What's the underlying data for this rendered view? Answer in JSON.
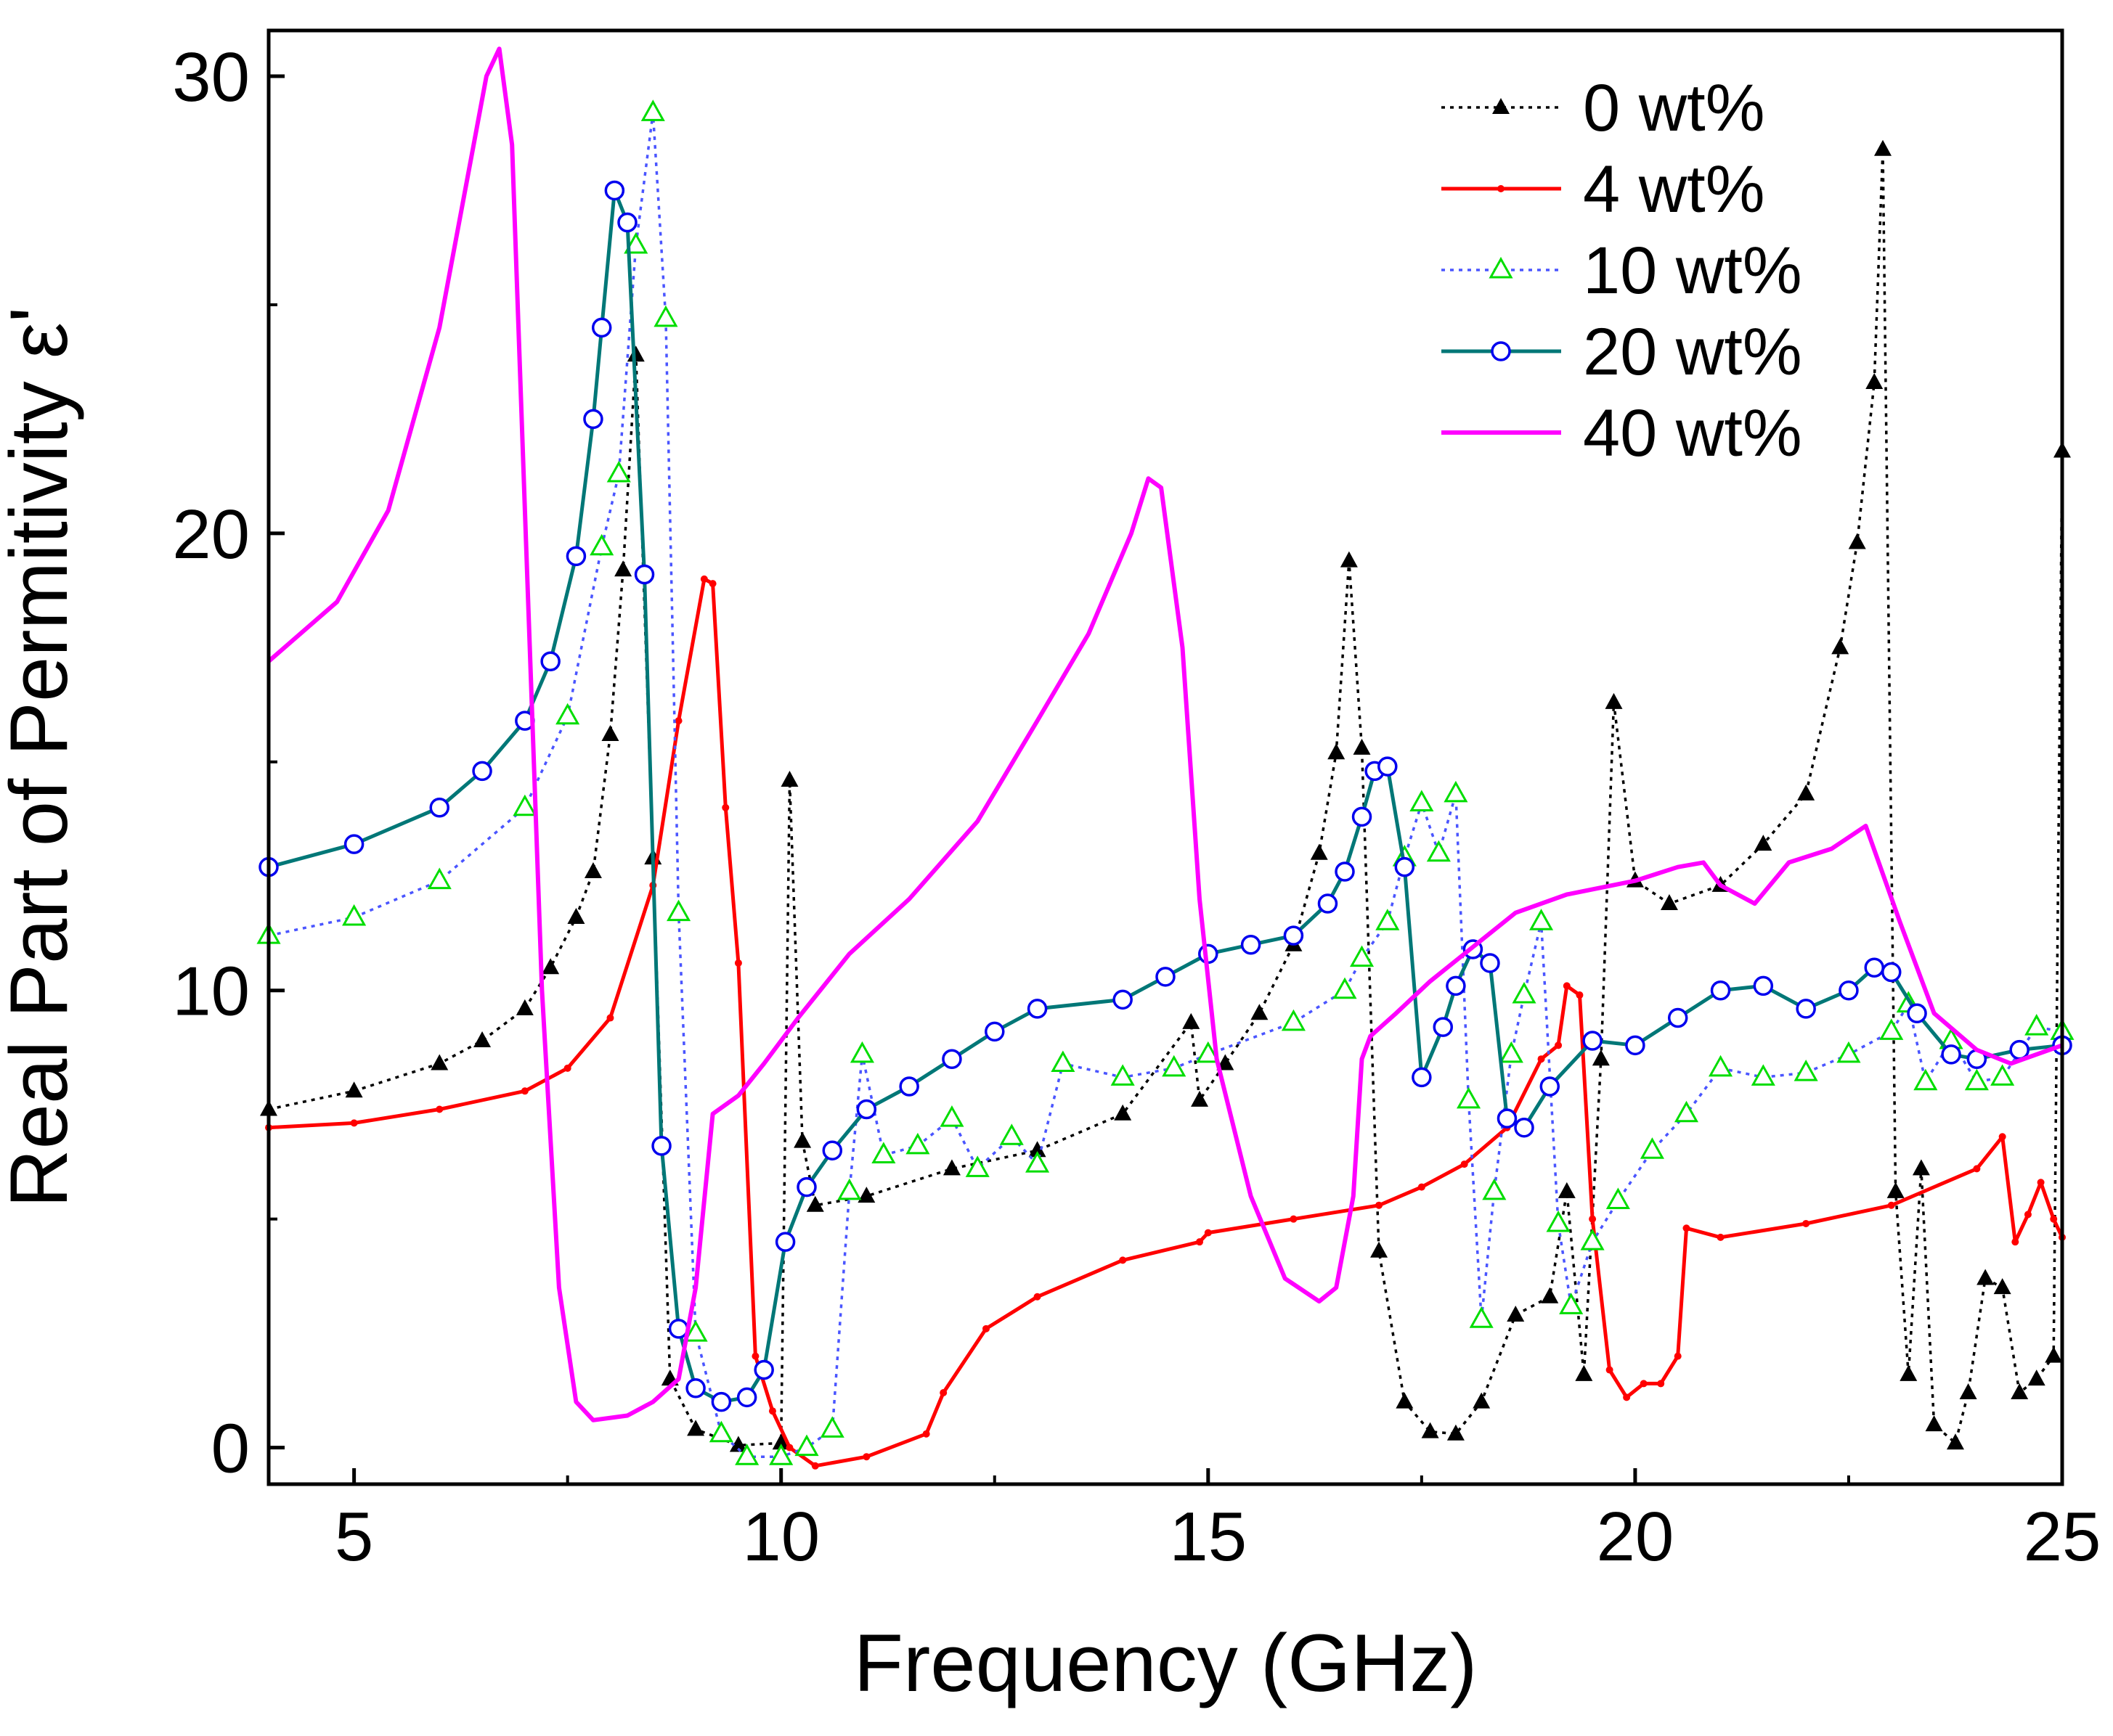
{
  "chart_data": {
    "type": "line",
    "title": "",
    "xlabel": "Frequency (GHz)",
    "ylabel": "Real Part of Permitivity ε'",
    "xlim": [
      4,
      25
    ],
    "ylim": [
      -0.8,
      31
    ],
    "xticks": [
      5,
      10,
      15,
      20,
      25
    ],
    "yticks": [
      0,
      10,
      20,
      30
    ],
    "legend_position": "top-right",
    "series": [
      {
        "name": "0 wt%",
        "color": "#000000",
        "dash": "dotted",
        "marker": "triangle-filled",
        "x": [
          4,
          5,
          6,
          6.5,
          7,
          7.3,
          7.6,
          7.8,
          8,
          8.15,
          8.3,
          8.5,
          8.7,
          9,
          9.5,
          10,
          10.1,
          10.25,
          10.4,
          11,
          12,
          13,
          14,
          14.8,
          14.9,
          15.2,
          15.6,
          16,
          16.3,
          16.5,
          16.65,
          16.8,
          17,
          17.3,
          17.6,
          17.9,
          18.2,
          18.6,
          19,
          19.2,
          19.4,
          19.6,
          19.75,
          20,
          20.4,
          21,
          21.5,
          22,
          22.4,
          22.6,
          22.8,
          22.9,
          23.05,
          23.2,
          23.35,
          23.5,
          23.75,
          23.9,
          24.1,
          24.3,
          24.5,
          24.7,
          24.9,
          25
        ],
        "y": [
          7.4,
          7.8,
          8.4,
          8.9,
          9.6,
          10.5,
          11.6,
          12.6,
          15.6,
          19.2,
          23.9,
          12.9,
          1.5,
          0.4,
          0.05,
          0.1,
          14.6,
          6.7,
          5.3,
          5.5,
          6.1,
          6.5,
          7.3,
          9.3,
          7.6,
          8.4,
          9.5,
          11.0,
          13.0,
          15.2,
          19.4,
          15.3,
          4.3,
          1.0,
          0.35,
          0.3,
          1.0,
          2.9,
          3.3,
          5.6,
          1.6,
          8.5,
          16.3,
          12.4,
          11.9,
          12.3,
          13.2,
          14.3,
          17.5,
          19.8,
          23.3,
          28.4,
          5.6,
          1.6,
          6.1,
          0.5,
          0.1,
          1.2,
          3.7,
          3.5,
          1.2,
          1.5,
          2.0,
          21.8
        ]
      },
      {
        "name": "4 wt%",
        "color": "#ff0000",
        "dash": "solid",
        "marker": "dot",
        "x": [
          4,
          5,
          6,
          7,
          7.5,
          8,
          8.5,
          8.8,
          9.1,
          9.2,
          9.35,
          9.5,
          9.7,
          9.9,
          10.1,
          10.4,
          11,
          11.7,
          11.9,
          12.4,
          13,
          14,
          14.9,
          15,
          16,
          17,
          17.5,
          18,
          18.5,
          18.9,
          19.1,
          19.2,
          19.35,
          19.5,
          19.7,
          19.9,
          20.1,
          20.3,
          20.5,
          20.6,
          21,
          22,
          23,
          24,
          24.3,
          24.45,
          24.6,
          24.75,
          24.9,
          25
        ],
        "y": [
          7.0,
          7.1,
          7.4,
          7.8,
          8.3,
          9.4,
          12.3,
          15.9,
          19.0,
          18.9,
          14.0,
          10.6,
          2.0,
          0.8,
          0.0,
          -0.4,
          -0.2,
          0.3,
          1.2,
          2.6,
          3.3,
          4.1,
          4.5,
          4.7,
          5.0,
          5.3,
          5.7,
          6.2,
          7.0,
          8.5,
          8.8,
          10.1,
          9.9,
          5.0,
          1.7,
          1.1,
          1.4,
          1.4,
          2.0,
          4.8,
          4.6,
          4.9,
          5.3,
          6.1,
          6.8,
          4.5,
          5.1,
          5.8,
          5.0,
          4.6
        ]
      },
      {
        "name": "10 wt%",
        "color": "#00dd00",
        "line_color": "#4a55ff",
        "dash": "dotted",
        "marker": "triangle-open",
        "x": [
          4,
          5,
          6,
          7,
          7.5,
          7.9,
          8.1,
          8.3,
          8.5,
          8.65,
          8.8,
          9,
          9.3,
          9.6,
          10,
          10.3,
          10.6,
          10.8,
          10.95,
          11.2,
          11.6,
          12,
          12.3,
          12.7,
          13,
          13.3,
          14,
          14.6,
          15,
          16,
          16.6,
          16.8,
          17.1,
          17.3,
          17.5,
          17.7,
          17.9,
          18.05,
          18.2,
          18.35,
          18.55,
          18.7,
          18.9,
          19.1,
          19.25,
          19.5,
          19.8,
          20.2,
          20.6,
          21,
          21.5,
          22,
          22.5,
          23,
          23.2,
          23.4,
          23.7,
          24,
          24.3,
          24.7,
          25
        ],
        "y": [
          11.2,
          11.6,
          12.4,
          14.0,
          16.0,
          19.7,
          21.3,
          26.3,
          29.2,
          24.7,
          11.7,
          2.5,
          0.3,
          -0.2,
          -0.2,
          0.0,
          0.4,
          5.6,
          8.6,
          6.4,
          6.6,
          7.2,
          6.1,
          6.8,
          6.2,
          8.4,
          8.1,
          8.3,
          8.6,
          9.3,
          10.0,
          10.7,
          11.5,
          12.9,
          14.1,
          13.0,
          14.3,
          7.6,
          2.8,
          5.6,
          8.6,
          9.9,
          11.5,
          4.9,
          3.1,
          4.5,
          5.4,
          6.5,
          7.3,
          8.3,
          8.1,
          8.2,
          8.6,
          9.1,
          9.7,
          8.0,
          8.9,
          8.0,
          8.1,
          9.2,
          9.1
        ]
      },
      {
        "name": "20 wt%",
        "color": "#0000ee",
        "line_color": "#007777",
        "dash": "solid",
        "marker": "circle-open",
        "x": [
          4,
          5,
          6,
          6.5,
          7,
          7.3,
          7.6,
          7.8,
          7.9,
          8.05,
          8.2,
          8.4,
          8.6,
          8.8,
          9,
          9.3,
          9.6,
          9.8,
          10.05,
          10.3,
          10.6,
          11,
          11.5,
          12,
          12.5,
          13,
          14,
          14.5,
          15,
          15.5,
          16,
          16.4,
          16.6,
          16.8,
          16.95,
          17.1,
          17.3,
          17.5,
          17.75,
          17.9,
          18.1,
          18.3,
          18.5,
          18.7,
          19,
          19.5,
          20,
          20.5,
          21,
          21.5,
          22,
          22.5,
          22.8,
          23,
          23.3,
          23.7,
          24,
          24.5,
          25
        ],
        "y": [
          12.7,
          13.2,
          14.0,
          14.8,
          15.9,
          17.2,
          19.5,
          22.5,
          24.5,
          27.5,
          26.8,
          19.1,
          6.6,
          2.6,
          1.3,
          1.0,
          1.1,
          1.7,
          4.5,
          5.7,
          6.5,
          7.4,
          7.9,
          8.5,
          9.1,
          9.6,
          9.8,
          10.3,
          10.8,
          11.0,
          11.2,
          11.9,
          12.6,
          13.8,
          14.8,
          14.9,
          12.7,
          8.1,
          9.2,
          10.1,
          10.9,
          10.6,
          7.2,
          7.0,
          7.9,
          8.9,
          8.8,
          9.4,
          10.0,
          10.1,
          9.6,
          10.0,
          10.5,
          10.4,
          9.5,
          8.6,
          8.5,
          8.7,
          8.8
        ]
      },
      {
        "name": "40 wt%",
        "color": "#ff00ff",
        "dash": "solid",
        "marker": "none",
        "x": [
          4,
          4.8,
          5.4,
          6,
          6.4,
          6.55,
          6.7,
          6.85,
          7,
          7.2,
          7.4,
          7.6,
          7.8,
          8.2,
          8.5,
          8.8,
          9,
          9.2,
          9.5,
          9.8,
          10.2,
          10.8,
          11.5,
          12.3,
          13,
          13.6,
          14.1,
          14.3,
          14.45,
          14.7,
          14.9,
          15.1,
          15.5,
          15.9,
          16.3,
          16.5,
          16.7,
          16.8,
          16.9,
          17.2,
          17.6,
          18,
          18.6,
          19.2,
          20,
          20.5,
          20.8,
          21,
          21.4,
          21.8,
          22.3,
          22.7,
          23.1,
          23.5,
          24,
          24.4,
          25
        ],
        "y": [
          17.2,
          18.5,
          20.5,
          24.5,
          28.5,
          30.0,
          30.6,
          28.5,
          20.5,
          10.0,
          3.5,
          1.0,
          0.6,
          0.7,
          1.0,
          1.5,
          3.5,
          7.3,
          7.7,
          8.4,
          9.4,
          10.8,
          12.0,
          13.7,
          15.9,
          17.8,
          20.0,
          21.2,
          21.0,
          17.5,
          12.0,
          8.5,
          5.5,
          3.7,
          3.2,
          3.5,
          5.5,
          8.5,
          9.0,
          9.5,
          10.2,
          10.8,
          11.7,
          12.1,
          12.4,
          12.7,
          12.8,
          12.3,
          11.9,
          12.8,
          13.1,
          13.6,
          11.5,
          9.5,
          8.7,
          8.4,
          8.8
        ]
      }
    ]
  }
}
